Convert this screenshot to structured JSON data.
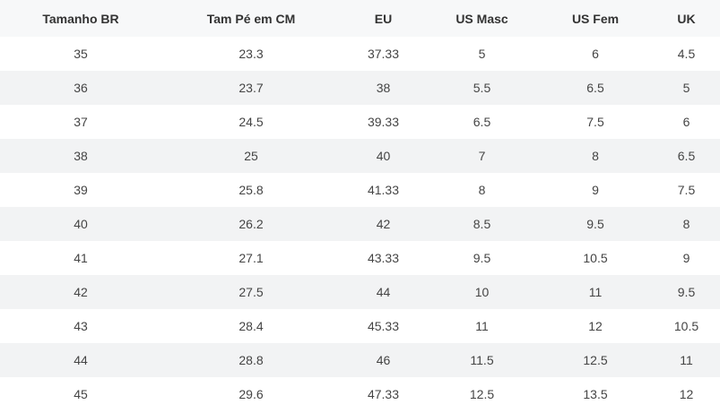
{
  "table": {
    "headers": [
      "Tamanho BR",
      "Tam Pé em CM",
      "EU",
      "US Masc",
      "US Fem",
      "UK"
    ],
    "rows": [
      [
        "35",
        "23.3",
        "37.33",
        "5",
        "6",
        "4.5"
      ],
      [
        "36",
        "23.7",
        "38",
        "5.5",
        "6.5",
        "5"
      ],
      [
        "37",
        "24.5",
        "39.33",
        "6.5",
        "7.5",
        "6"
      ],
      [
        "38",
        "25",
        "40",
        "7",
        "8",
        "6.5"
      ],
      [
        "39",
        "25.8",
        "41.33",
        "8",
        "9",
        "7.5"
      ],
      [
        "40",
        "26.2",
        "42",
        "8.5",
        "9.5",
        "8"
      ],
      [
        "41",
        "27.1",
        "43.33",
        "9.5",
        "10.5",
        "9"
      ],
      [
        "42",
        "27.5",
        "44",
        "10",
        "11",
        "9.5"
      ],
      [
        "43",
        "28.4",
        "45.33",
        "11",
        "12",
        "10.5"
      ],
      [
        "44",
        "28.8",
        "46",
        "11.5",
        "12.5",
        "11"
      ],
      [
        "45",
        "29.6",
        "47.33",
        "12.5",
        "13.5",
        "12"
      ]
    ]
  }
}
